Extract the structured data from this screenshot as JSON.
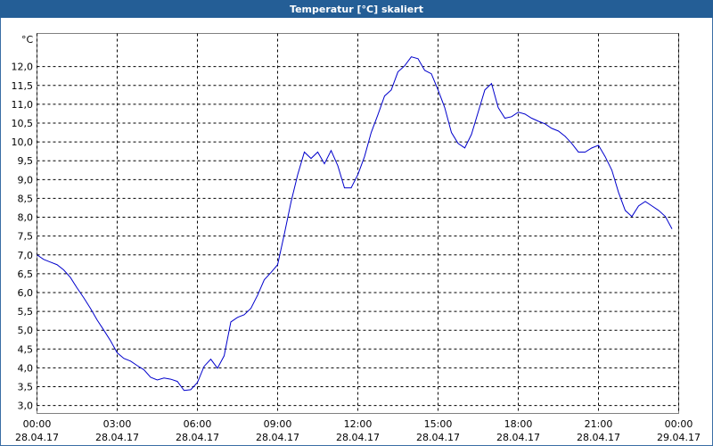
{
  "chart_data": {
    "type": "line",
    "title": "Temperatur [°C] skaliert",
    "ylabel": "°C",
    "color": "#0000cc",
    "grid": true,
    "xlim": [
      0,
      24
    ],
    "ylim": [
      2.79,
      12.88
    ],
    "xticks": [
      {
        "value": 0,
        "label": [
          "00:00",
          "28.04.17"
        ]
      },
      {
        "value": 3,
        "label": [
          "03:00",
          "28.04.17"
        ]
      },
      {
        "value": 6,
        "label": [
          "06:00",
          "28.04.17"
        ]
      },
      {
        "value": 9,
        "label": [
          "09:00",
          "28.04.17"
        ]
      },
      {
        "value": 12,
        "label": [
          "12:00",
          "28.04.17"
        ]
      },
      {
        "value": 15,
        "label": [
          "15:00",
          "28.04.17"
        ]
      },
      {
        "value": 18,
        "label": [
          "18:00",
          "28.04.17"
        ]
      },
      {
        "value": 21,
        "label": [
          "21:00",
          "28.04.17"
        ]
      },
      {
        "value": 24,
        "label": [
          "00:00",
          "29.04.17"
        ]
      }
    ],
    "yticks": [
      {
        "value": 3,
        "label": "3,0"
      },
      {
        "value": 3.5,
        "label": "3,5"
      },
      {
        "value": 4,
        "label": "4,0"
      },
      {
        "value": 4.5,
        "label": "4,5"
      },
      {
        "value": 5,
        "label": "5,0"
      },
      {
        "value": 5.5,
        "label": "5,5"
      },
      {
        "value": 6,
        "label": "6,0"
      },
      {
        "value": 6.5,
        "label": "6,5"
      },
      {
        "value": 7,
        "label": "7,0"
      },
      {
        "value": 7.5,
        "label": "7,5"
      },
      {
        "value": 8,
        "label": "8,0"
      },
      {
        "value": 8.5,
        "label": "8,5"
      },
      {
        "value": 9,
        "label": "9,0"
      },
      {
        "value": 9.5,
        "label": "9,5"
      },
      {
        "value": 10,
        "label": "10,0"
      },
      {
        "value": 10.5,
        "label": "10,5"
      },
      {
        "value": 11,
        "label": "11,0"
      },
      {
        "value": 11.5,
        "label": "11,5"
      },
      {
        "value": 12,
        "label": "12,0"
      }
    ],
    "x": [
      0,
      0.25,
      0.5,
      0.75,
      1,
      1.25,
      1.5,
      1.75,
      2,
      2.25,
      2.5,
      2.75,
      3,
      3.25,
      3.5,
      3.75,
      4,
      4.25,
      4.5,
      4.75,
      5,
      5.25,
      5.5,
      5.75,
      6,
      6.25,
      6.5,
      6.75,
      7,
      7.25,
      7.5,
      7.75,
      8,
      8.25,
      8.5,
      8.75,
      9,
      9.25,
      9.5,
      9.75,
      10,
      10.25,
      10.5,
      10.75,
      11,
      11.25,
      11.5,
      11.75,
      12,
      12.25,
      12.5,
      12.75,
      13,
      13.25,
      13.5,
      13.75,
      14,
      14.25,
      14.5,
      14.75,
      15,
      15.25,
      15.5,
      15.75,
      16,
      16.25,
      16.5,
      16.75,
      17,
      17.25,
      17.5,
      17.75,
      18,
      18.25,
      18.5,
      18.75,
      19,
      19.25,
      19.5,
      19.75,
      20,
      20.25,
      20.5,
      20.75,
      21,
      21.25,
      21.5,
      21.75,
      22,
      22.25,
      22.5,
      22.75,
      23,
      23.25,
      23.5,
      23.75
    ],
    "values": [
      7.0,
      6.88,
      6.81,
      6.74,
      6.6,
      6.4,
      6.12,
      5.86,
      5.58,
      5.27,
      5.0,
      4.72,
      4.4,
      4.25,
      4.18,
      4.06,
      3.95,
      3.75,
      3.68,
      3.73,
      3.7,
      3.64,
      3.4,
      3.42,
      3.61,
      4.04,
      4.23,
      3.99,
      4.32,
      5.22,
      5.34,
      5.41,
      5.58,
      5.93,
      6.34,
      6.53,
      6.74,
      7.55,
      8.4,
      9.13,
      9.73,
      9.56,
      9.73,
      9.42,
      9.77,
      9.37,
      8.78,
      8.78,
      9.13,
      9.61,
      10.25,
      10.72,
      11.22,
      11.38,
      11.86,
      12.02,
      12.26,
      12.21,
      11.9,
      11.81,
      11.38,
      10.91,
      10.25,
      9.96,
      9.84,
      10.2,
      10.79,
      11.38,
      11.55,
      10.91,
      10.63,
      10.67,
      10.79,
      10.74,
      10.63,
      10.55,
      10.48,
      10.36,
      10.29,
      10.15,
      9.96,
      9.73,
      9.73,
      9.84,
      9.91,
      9.61,
      9.25,
      8.66,
      8.18,
      8.02,
      8.3,
      8.42,
      8.3,
      8.18,
      8.02,
      7.69
    ]
  }
}
